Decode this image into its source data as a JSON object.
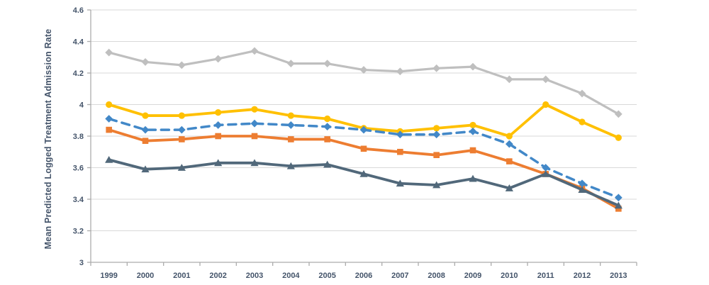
{
  "chart_data": {
    "type": "line",
    "title": "",
    "xlabel": "",
    "ylabel": "Mean Predicted Logged Treatment Admission Rate",
    "ylim": [
      3,
      4.6
    ],
    "ytick_values": [
      3,
      3.2,
      3.4,
      3.6,
      3.8,
      4,
      4.2,
      4.4,
      4.6
    ],
    "ytick_labels": [
      "3",
      "3.2",
      "3.4",
      "3.6",
      "3.8",
      "4",
      "4.2",
      "4.4",
      "4.6"
    ],
    "categories": [
      "1999",
      "2000",
      "2001",
      "2002",
      "2003",
      "2004",
      "2005",
      "2006",
      "2007",
      "2008",
      "2009",
      "2010",
      "2011",
      "2012",
      "2013"
    ],
    "grid": "horizontal",
    "legend": "none",
    "colors": {
      "axis_text": "#44546A",
      "gridline": "#D9D9D9",
      "axis_line": "#ACACAC",
      "background": "#FFFFFF"
    },
    "series": [
      {
        "name": "light-gray-diamond-line",
        "color": "#BFBFBF",
        "marker": "diamond",
        "dash": "solid",
        "line_width": 3.2,
        "values": [
          4.33,
          4.27,
          4.25,
          4.29,
          4.34,
          4.26,
          4.26,
          4.22,
          4.21,
          4.23,
          4.24,
          4.16,
          4.16,
          4.07,
          3.94
        ]
      },
      {
        "name": "gold-circle-line",
        "color": "#FFC000",
        "marker": "circle",
        "dash": "solid",
        "line_width": 3.8,
        "values": [
          4.0,
          3.93,
          3.93,
          3.95,
          3.97,
          3.93,
          3.91,
          3.85,
          3.83,
          3.85,
          3.87,
          3.8,
          4.0,
          3.89,
          3.79
        ]
      },
      {
        "name": "orange-square-line",
        "color": "#ED7D31",
        "marker": "square",
        "dash": "solid",
        "line_width": 3.8,
        "values": [
          3.84,
          3.77,
          3.78,
          3.8,
          3.8,
          3.78,
          3.78,
          3.72,
          3.7,
          3.68,
          3.71,
          3.64,
          3.56,
          3.47,
          3.34
        ]
      },
      {
        "name": "slate-triangle-line",
        "color": "#51687A",
        "marker": "triangle",
        "dash": "solid",
        "line_width": 3.8,
        "values": [
          3.65,
          3.59,
          3.6,
          3.63,
          3.63,
          3.61,
          3.62,
          3.56,
          3.5,
          3.49,
          3.53,
          3.47,
          3.56,
          3.46,
          3.36
        ]
      },
      {
        "name": "blue-dashed-diamond-line",
        "color": "#4288C8",
        "marker": "diamond",
        "dash": "dashed",
        "line_width": 3.5,
        "values": [
          3.91,
          3.84,
          3.84,
          3.87,
          3.88,
          3.87,
          3.86,
          3.84,
          3.81,
          3.81,
          3.83,
          3.75,
          3.6,
          3.5,
          3.41
        ]
      }
    ]
  }
}
